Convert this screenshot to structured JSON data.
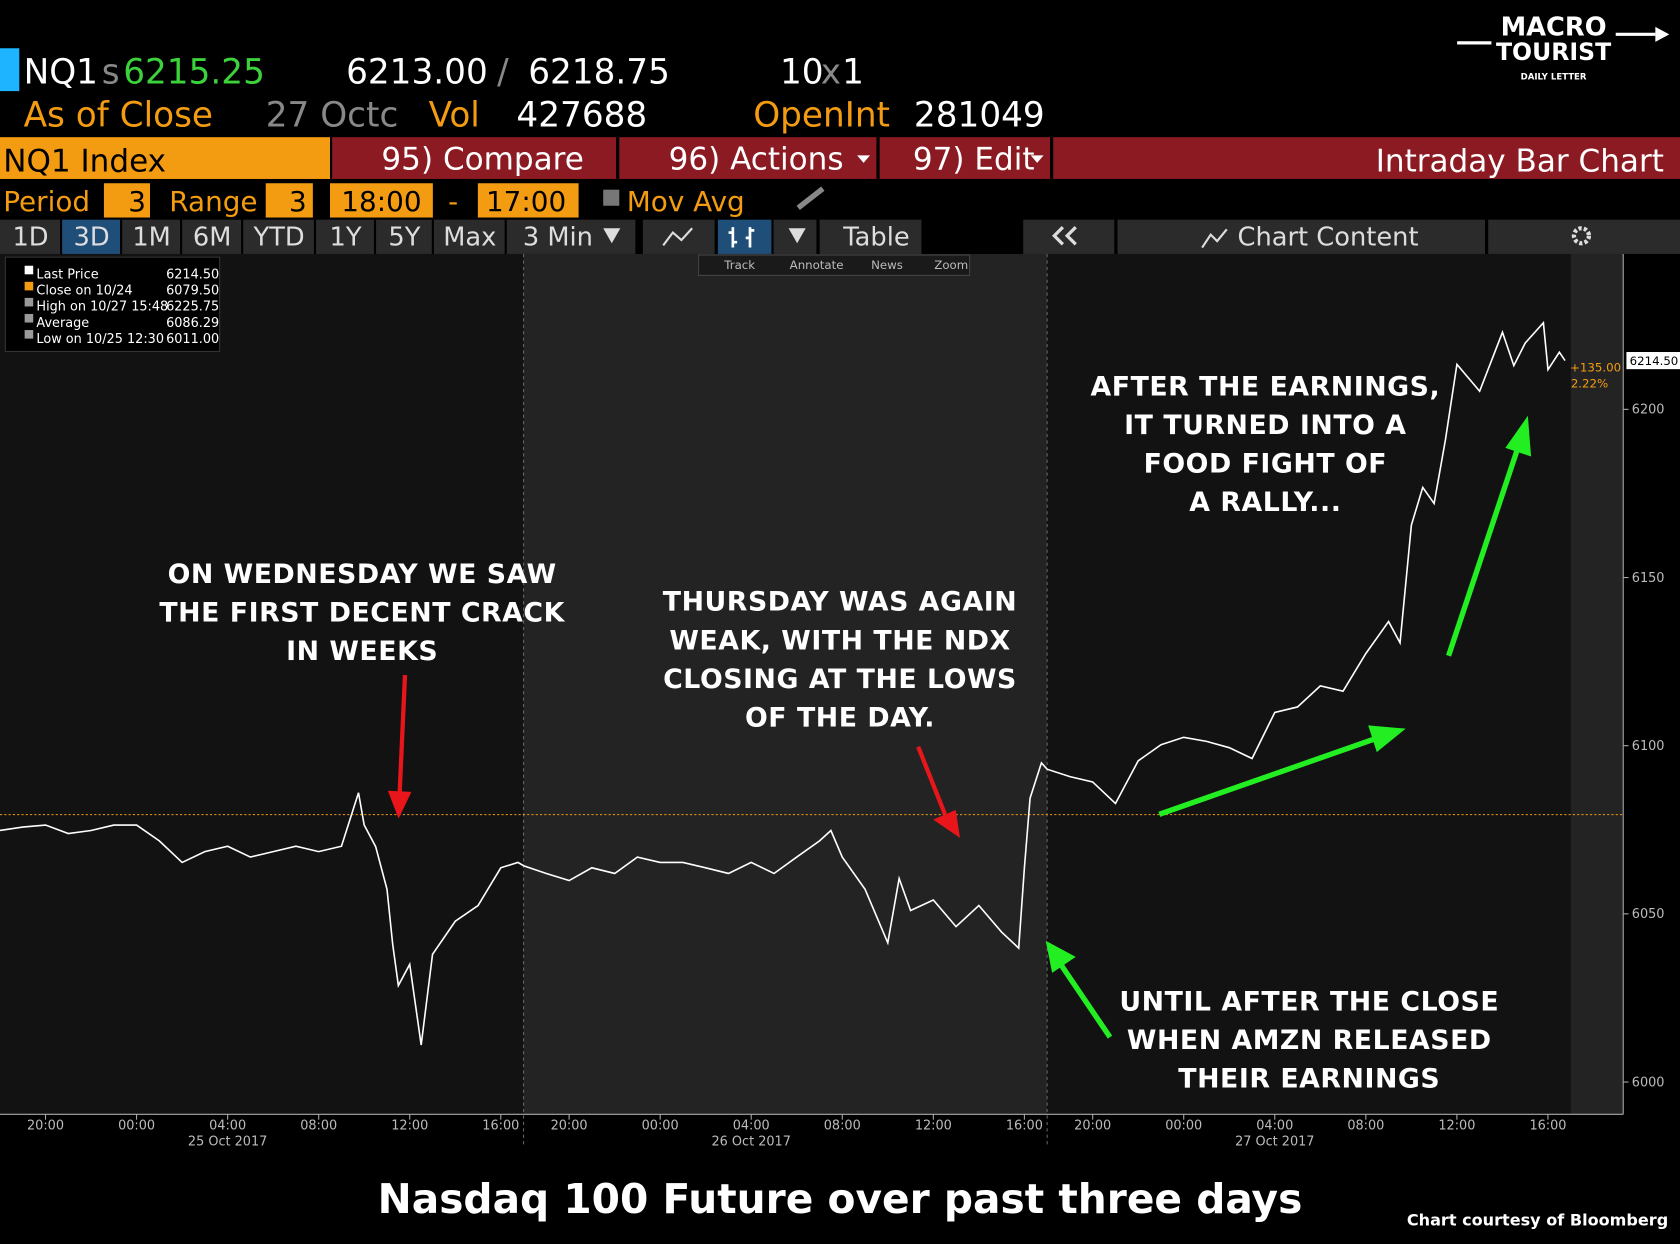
{
  "header": {
    "ticker": "NQ1",
    "last_prefix": "s",
    "last": "6215.25",
    "bid": "6213.00",
    "sep": "/",
    "ask": "6218.75",
    "size_bid": "10",
    "size_x": "x",
    "size_ask": "1",
    "asof_label": "As of Close",
    "asof_date": "27 Octc",
    "vol_label": "Vol",
    "vol": "427688",
    "oi_label": "OpenInt",
    "oi": "281049"
  },
  "menu": {
    "security": "NQ1 Index",
    "compare": "95) Compare",
    "actions": "96) Actions",
    "edit": "97) Edit",
    "view": "Intraday Bar Chart"
  },
  "settings": {
    "period_label": "Period",
    "period": "3",
    "range_label": "Range",
    "range": "3",
    "start": "18:00",
    "dash": "-",
    "end": "17:00",
    "mov_avg": "Mov Avg"
  },
  "tabs": [
    "1D",
    "3D",
    "1M",
    "6M",
    "YTD",
    "1Y",
    "5Y",
    "Max"
  ],
  "interval": "3 Min",
  "table": "Table",
  "chart_content": "Chart Content",
  "toolbar": [
    "Track",
    "Annotate",
    "News",
    "Zoom"
  ],
  "logo": {
    "line1": "MACRO",
    "line2": "TOURIST",
    "tagline": "DAILY LETTER"
  },
  "chart_data": {
    "type": "line",
    "x": [
      "2017-10-24T18:00",
      "2017-10-24T19:00",
      "2017-10-24T20:00",
      "2017-10-24T21:00",
      "2017-10-24T22:00",
      "2017-10-24T23:00",
      "2017-10-25T00:00",
      "2017-10-25T01:00",
      "2017-10-25T02:00",
      "2017-10-25T03:00",
      "2017-10-25T04:00",
      "2017-10-25T05:00",
      "2017-10-25T06:00",
      "2017-10-25T07:00",
      "2017-10-25T08:00",
      "2017-10-25T09:00",
      "2017-10-25T09:45",
      "2017-10-25T10:00",
      "2017-10-25T10:30",
      "2017-10-25T11:00",
      "2017-10-25T11:15",
      "2017-10-25T11:30",
      "2017-10-25T12:00",
      "2017-10-25T12:30",
      "2017-10-25T13:00",
      "2017-10-25T14:00",
      "2017-10-25T15:00",
      "2017-10-25T16:00",
      "2017-10-25T16:45",
      "2017-10-25T18:00",
      "2017-10-25T19:00",
      "2017-10-25T20:00",
      "2017-10-25T21:00",
      "2017-10-25T22:00",
      "2017-10-25T23:00",
      "2017-10-26T00:00",
      "2017-10-26T01:00",
      "2017-10-26T02:00",
      "2017-10-26T03:00",
      "2017-10-26T04:00",
      "2017-10-26T05:00",
      "2017-10-26T06:00",
      "2017-10-26T07:00",
      "2017-10-26T07:30",
      "2017-10-26T08:00",
      "2017-10-26T09:00",
      "2017-10-26T10:00",
      "2017-10-26T10:30",
      "2017-10-26T11:00",
      "2017-10-26T12:00",
      "2017-10-26T13:00",
      "2017-10-26T14:00",
      "2017-10-26T15:00",
      "2017-10-26T15:45",
      "2017-10-26T16:00",
      "2017-10-26T16:15",
      "2017-10-26T16:45",
      "2017-10-26T18:00",
      "2017-10-26T19:00",
      "2017-10-26T20:00",
      "2017-10-26T21:00",
      "2017-10-26T22:00",
      "2017-10-26T23:00",
      "2017-10-27T00:00",
      "2017-10-27T01:00",
      "2017-10-27T02:00",
      "2017-10-27T03:00",
      "2017-10-27T04:00",
      "2017-10-27T05:00",
      "2017-10-27T06:00",
      "2017-10-27T07:00",
      "2017-10-27T08:00",
      "2017-10-27T09:00",
      "2017-10-27T09:30",
      "2017-10-27T10:00",
      "2017-10-27T10:30",
      "2017-10-27T11:00",
      "2017-10-27T11:30",
      "2017-10-27T12:00",
      "2017-10-27T13:00",
      "2017-10-27T14:00",
      "2017-10-27T14:30",
      "2017-10-27T15:00",
      "2017-10-27T15:48",
      "2017-10-27T16:00",
      "2017-10-27T16:30",
      "2017-10-27T16:45"
    ],
    "series": [
      {
        "name": "Last Price",
        "color": "#ffffff",
        "values": [
          6074.8,
          6075.8,
          6076.4,
          6073.9,
          6074.8,
          6076.4,
          6076.4,
          6071.7,
          6065.3,
          6068.5,
          6070.1,
          6066.9,
          6068.5,
          6070.1,
          6068.5,
          6070.1,
          6086,
          6076.4,
          6070,
          6057.3,
          6041,
          6028.7,
          6035,
          6011,
          6038,
          6047.8,
          6052.5,
          6063.7,
          6065.3,
          6064.3,
          6062,
          6059.9,
          6063.7,
          6062,
          6066.9,
          6065.3,
          6065.3,
          6063.7,
          6062,
          6065.3,
          6062,
          6066.9,
          6071.7,
          6074.8,
          6066.9,
          6057.3,
          6041.4,
          6060.5,
          6051,
          6054.1,
          6046.2,
          6052.5,
          6044.6,
          6039.8,
          6063.7,
          6084.4,
          6094.9,
          6093,
          6090.8,
          6089.2,
          6082.8,
          6095.5,
          6100.3,
          6102.5,
          6101.3,
          6099.4,
          6096.2,
          6109.9,
          6111.5,
          6117.8,
          6116.2,
          6127.4,
          6136.9,
          6130.6,
          6165.6,
          6176.8,
          6172,
          6191,
          6213.4,
          6205.4,
          6222.9,
          6213,
          6219.7,
          6225.75,
          6211.8,
          6217,
          6214.5
        ]
      }
    ],
    "last_value": {
      "value": 6214.5,
      "value_label": "6214.50"
    },
    "stats": [
      {
        "label": "Close on 10/24",
        "value": 6079.5,
        "value_label": "6079.50",
        "color": "#f39c12"
      },
      {
        "label": "High on 10/27 15:48",
        "value": 6225.75,
        "value_label": "6225.75"
      },
      {
        "label": "Average",
        "value": 6086.29,
        "value_label": "6086.29"
      },
      {
        "label": "Low on 10/25 12:30",
        "value": 6011,
        "value_label": "6011.00"
      }
    ],
    "change": {
      "value": 135,
      "value_label": "+135.00"
    },
    "change_pct": {
      "value": 2.22,
      "value_label": "2.22%"
    },
    "xlim": [
      "2017-10-24T18:00",
      "2017-10-27T17:00"
    ],
    "xticks": [
      {
        "value": "2017-10-24T20:00",
        "label": "20:00"
      },
      {
        "value": "2017-10-25T00:00",
        "label": "00:00"
      },
      {
        "value": "2017-10-25T04:00",
        "label": "04:00"
      },
      {
        "value": "2017-10-25T08:00",
        "label": "08:00"
      },
      {
        "value": "2017-10-25T12:00",
        "label": "12:00"
      },
      {
        "value": "2017-10-25T16:00",
        "label": "16:00"
      },
      {
        "value": "2017-10-25T20:00",
        "label": "20:00"
      },
      {
        "value": "2017-10-26T00:00",
        "label": "00:00"
      },
      {
        "value": "2017-10-26T04:00",
        "label": "04:00"
      },
      {
        "value": "2017-10-26T08:00",
        "label": "08:00"
      },
      {
        "value": "2017-10-26T12:00",
        "label": "12:00"
      },
      {
        "value": "2017-10-26T16:00",
        "label": "16:00"
      },
      {
        "value": "2017-10-26T20:00",
        "label": "20:00"
      },
      {
        "value": "2017-10-27T00:00",
        "label": "00:00"
      },
      {
        "value": "2017-10-27T04:00",
        "label": "04:00"
      },
      {
        "value": "2017-10-27T08:00",
        "label": "08:00"
      },
      {
        "value": "2017-10-27T12:00",
        "label": "12:00"
      },
      {
        "value": "2017-10-27T16:00",
        "label": "16:00"
      }
    ],
    "date_ticks": [
      {
        "value": "2017-10-25T04:00",
        "label": "25 Oct 2017"
      },
      {
        "value": "2017-10-26T04:00",
        "label": "26 Oct 2017"
      },
      {
        "value": "2017-10-27T04:00",
        "label": "27 Oct 2017"
      }
    ],
    "ylim": [
      5990.4,
      6246.2
    ],
    "yticks": [
      6000,
      6050,
      6100,
      6150,
      6200
    ],
    "annotations": [
      {
        "lines": [
          "ON WEDNESDAY WE SAW",
          "THE FIRST DECENT CRACK",
          "IN WEEKS"
        ]
      },
      {
        "lines": [
          "THURSDAY WAS AGAIN",
          "WEAK, WITH THE NDX",
          "CLOSING AT THE LOWS",
          "OF THE DAY."
        ]
      },
      {
        "lines": [
          "AFTER THE EARNINGS,",
          "IT TURNED INTO A",
          "FOOD FIGHT OF",
          "A RALLY..."
        ]
      },
      {
        "lines": [
          "UNTIL AFTER THE CLOSE",
          "WHEN AMZN RELEASED",
          "THEIR EARNINGS"
        ]
      }
    ]
  },
  "caption": "Nasdaq 100 Future over past three days",
  "credit": "Chart courtesy of Bloomberg"
}
